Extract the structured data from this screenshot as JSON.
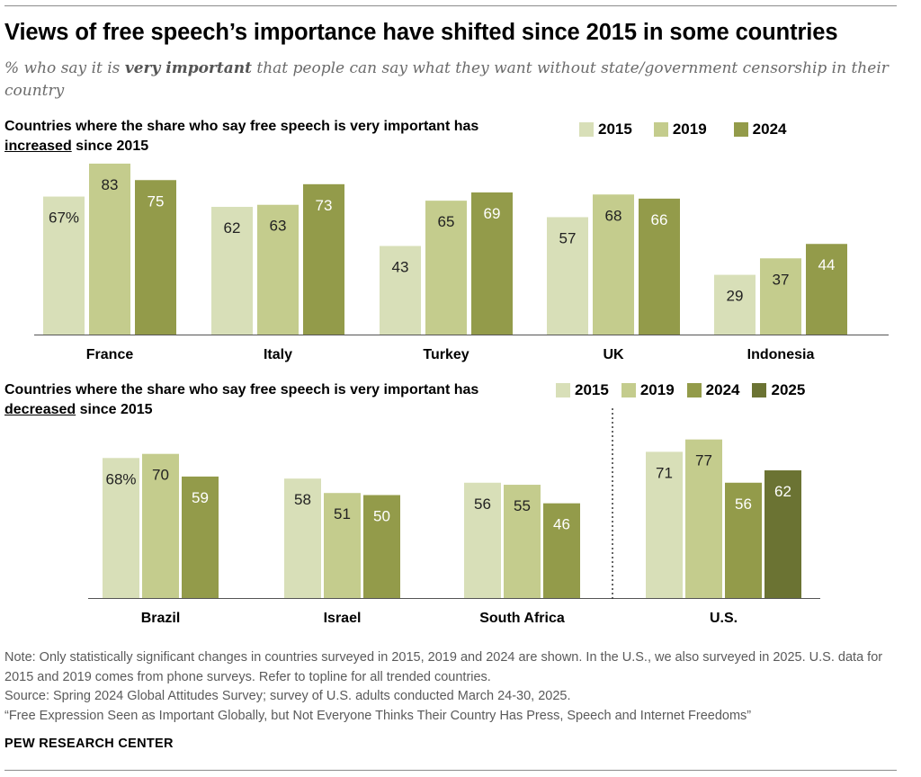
{
  "title": "Views of free speech’s importance have shifted since 2015 in some countries",
  "subtitle_lead": "% who say it is ",
  "subtitle_em": "very important",
  "subtitle_tail": " that people can say what they want without state/government censorship in their country",
  "colors": {
    "2015": "#d8dfb8",
    "2019": "#c4cc8d",
    "2024": "#939b4a",
    "2025": "#6b7333"
  },
  "chart_data": [
    {
      "type": "bar",
      "panel_title_lead": "Countries where the share who say free speech is very important has ",
      "panel_title_keyword": "increased",
      "panel_title_tail": " since 2015",
      "legend": [
        "2015",
        "2019",
        "2024"
      ],
      "categories": [
        "France",
        "Italy",
        "Turkey",
        "UK",
        "Indonesia"
      ],
      "series": [
        {
          "name": "2015",
          "values": [
            67,
            62,
            43,
            57,
            29
          ]
        },
        {
          "name": "2019",
          "values": [
            83,
            63,
            65,
            68,
            37
          ]
        },
        {
          "name": "2024",
          "values": [
            75,
            73,
            69,
            66,
            44
          ]
        }
      ],
      "first_label_suffix": "%",
      "ylim": [
        0,
        100
      ]
    },
    {
      "type": "bar",
      "panel_title_lead": "Countries where the share who say free speech is very important has ",
      "panel_title_keyword": "decreased",
      "panel_title_tail": " since 2015",
      "legend": [
        "2015",
        "2019",
        "2024",
        "2025"
      ],
      "categories": [
        "Brazil",
        "Israel",
        "South Africa",
        "U.S."
      ],
      "series": [
        {
          "name": "2015",
          "values": [
            68,
            58,
            56,
            71
          ]
        },
        {
          "name": "2019",
          "values": [
            70,
            51,
            55,
            77
          ]
        },
        {
          "name": "2024",
          "values": [
            59,
            50,
            46,
            56
          ]
        },
        {
          "name": "2025",
          "values": [
            null,
            null,
            null,
            62
          ]
        }
      ],
      "first_label_suffix": "%",
      "ylim": [
        0,
        100
      ]
    }
  ],
  "notes": {
    "note": "Note: Only statistically significant changes in countries surveyed in 2015, 2019 and 2024 are shown. In the U.S., we also surveyed in 2025. U.S. data for 2015 and 2019 comes from phone surveys. Refer to topline for all trended countries.",
    "source": "Source: Spring 2024 Global Attitudes Survey; survey of U.S. adults conducted March 24-30, 2025.",
    "report": "“Free Expression Seen as Important Globally, but Not Everyone Thinks Their Country Has Press, Speech and Internet Freedoms”"
  },
  "brand": "PEW RESEARCH CENTER"
}
